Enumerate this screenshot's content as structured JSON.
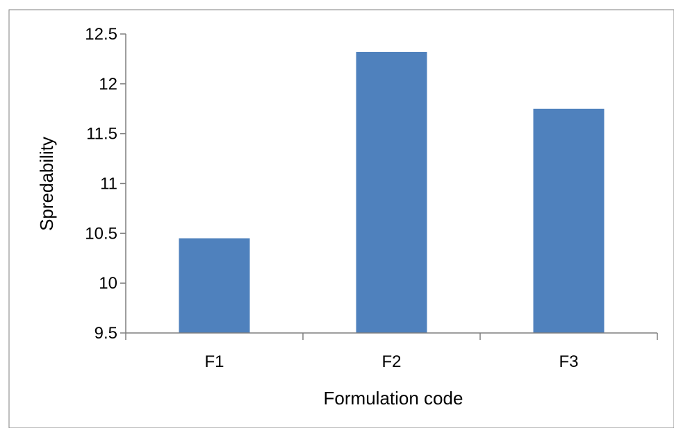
{
  "chart_data": {
    "type": "bar",
    "title": "",
    "xlabel": "Formulation code",
    "ylabel": "Spredability",
    "categories": [
      "F1",
      "F2",
      "F3"
    ],
    "values": [
      10.45,
      12.32,
      11.75
    ],
    "ylim": [
      9.5,
      12.5
    ],
    "yticks": [
      "9.5",
      "10",
      "10.5",
      "11",
      "11.5",
      "12",
      "12.5"
    ],
    "grid": false,
    "legend": "none",
    "colors": {
      "bar": "#4f81bd",
      "axis": "#7f7f7f",
      "border": "#7f7f7f"
    }
  }
}
